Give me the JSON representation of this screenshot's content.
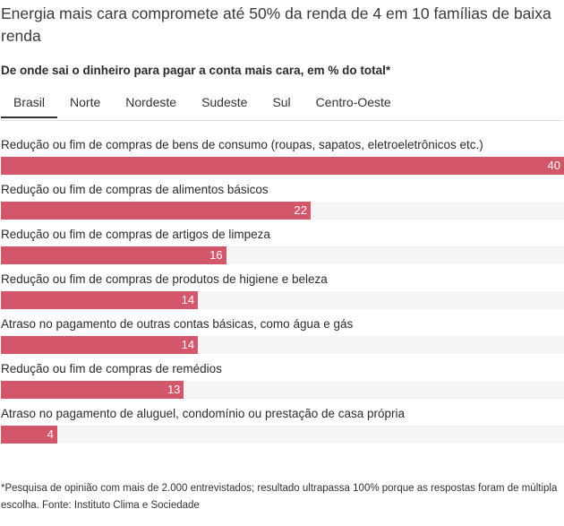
{
  "header": {
    "title": "Energia mais cara compromete até 50% da renda de 4 em 10 famílias de baixa renda",
    "subtitle": "De onde sai o dinheiro para pagar a conta mais cara, em % do total*"
  },
  "tabs": [
    {
      "label": "Brasil",
      "active": true
    },
    {
      "label": "Norte",
      "active": false
    },
    {
      "label": "Nordeste",
      "active": false
    },
    {
      "label": "Sudeste",
      "active": false
    },
    {
      "label": "Sul",
      "active": false
    },
    {
      "label": "Centro-Oeste",
      "active": false
    }
  ],
  "footer": {
    "note": "*Pesquisa de opinião com mais de 2.000 entrevistados; resultado ultrapassa 100% porque as respostas foram de múltipla escolha. Fonte: Instituto Clima e Sociedade"
  },
  "colors": {
    "bar": "#d4566b",
    "track": "#f4f4f4"
  },
  "chart_data": {
    "type": "bar",
    "orientation": "horizontal",
    "categories": [
      "Redução ou fim de compras de bens de consumo (roupas, sapatos, eletroeletrônicos etc.)",
      "Redução ou fim de compras de alimentos básicos",
      "Redução ou fim de compras de artigos de limpeza",
      "Redução ou fim de compras de produtos de higiene e beleza",
      "Atraso no pagamento de outras contas básicas, como água e gás",
      "Redução ou fim de compras de remédios",
      "Atraso no pagamento de aluguel, condomínio ou prestação de casa própria"
    ],
    "values": [
      40,
      22,
      16,
      14,
      14,
      13,
      4
    ],
    "xlim": [
      0,
      40
    ],
    "grid": false
  }
}
